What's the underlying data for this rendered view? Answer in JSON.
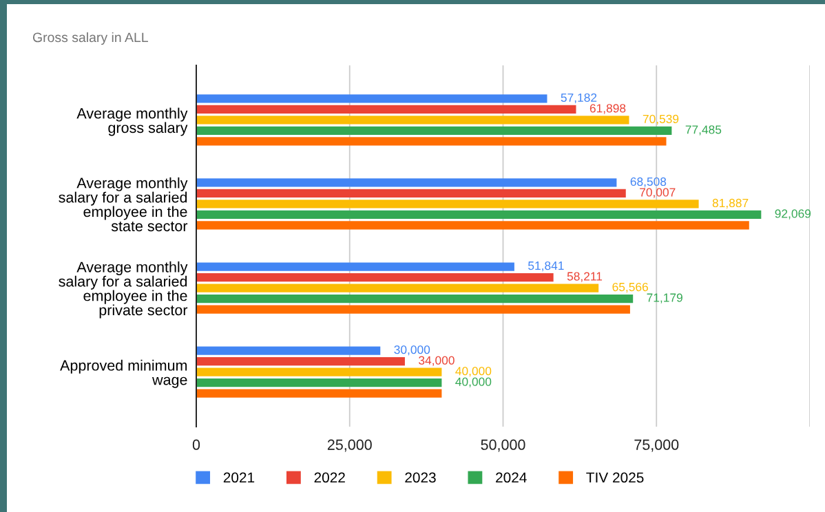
{
  "chart_data": {
    "type": "bar",
    "orientation": "horizontal",
    "title": "Gross salary in ALL",
    "categories": [
      "Average monthly\ngross salary",
      "Average monthly\nsalary for a salaried\nemployee in the\nstate sector",
      "Average monthly\nsalary for a salaried\nemployee in the\nprivate sector",
      "Approved minimum\nwage"
    ],
    "series": [
      {
        "name": "2021",
        "color": "#4285f4",
        "values": [
          57182,
          68508,
          51841,
          30000
        ],
        "value_labels": [
          "57,182",
          "68,508",
          "51,841",
          "30,000"
        ]
      },
      {
        "name": "2022",
        "color": "#ea4335",
        "values": [
          61898,
          70007,
          58211,
          34000
        ],
        "value_labels": [
          "61,898",
          "70,007",
          "58,211",
          "34,000"
        ]
      },
      {
        "name": "2023",
        "color": "#fbbc04",
        "values": [
          70539,
          81887,
          65566,
          40000
        ],
        "value_labels": [
          "70,539",
          "81,887",
          "65,566",
          "40,000"
        ]
      },
      {
        "name": "2024",
        "color": "#34a853",
        "values": [
          77485,
          92069,
          71179,
          40000
        ],
        "value_labels": [
          "77,485",
          "92,069",
          "71,179",
          "40,000"
        ]
      },
      {
        "name": "TIV 2025",
        "color": "#ff6d01",
        "values": [
          76600,
          90100,
          70700,
          40000
        ]
      }
    ],
    "xlim": [
      0,
      100000
    ],
    "xticks": [
      0,
      {
        "value": 25000,
        "label": "25,000"
      },
      {
        "value": 50000,
        "label": "50,000"
      },
      {
        "value": 75000,
        "label": "75,000"
      },
      {
        "value": 100000,
        "label": null
      }
    ],
    "grid": "x",
    "legend": "bottom"
  }
}
